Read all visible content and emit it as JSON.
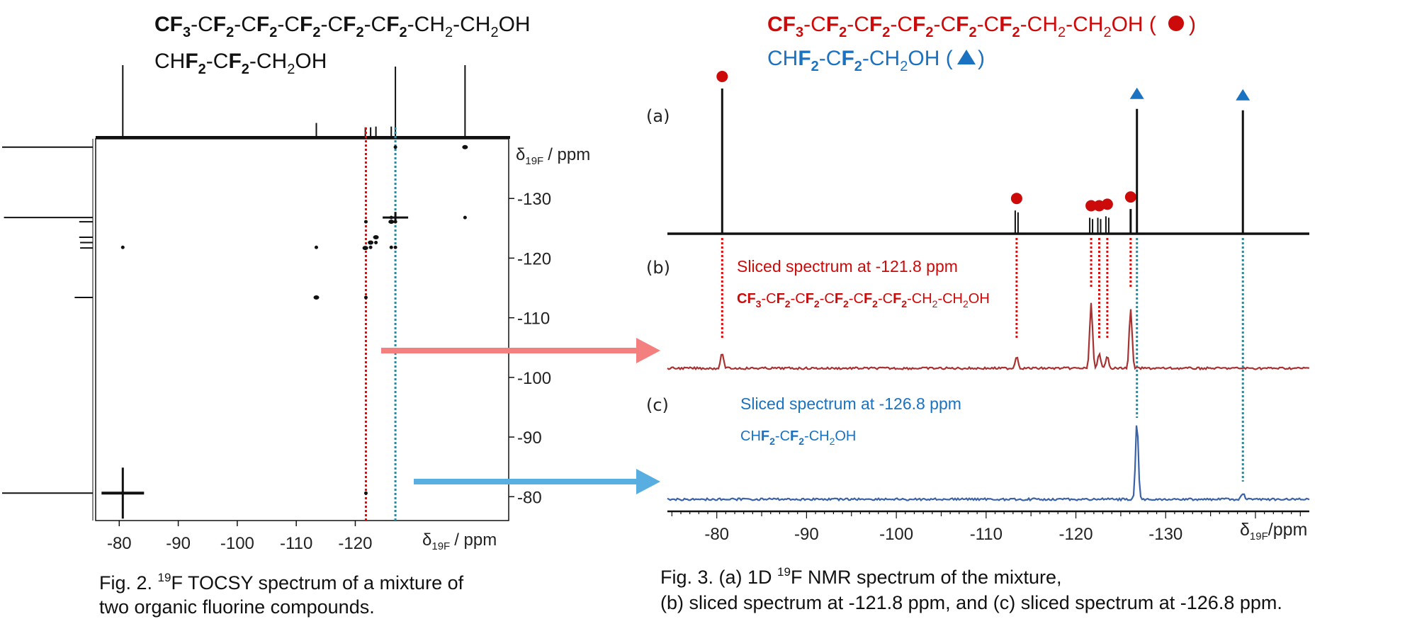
{
  "fig2": {
    "formula_long": {
      "parts": [
        {
          "t": "C",
          "b": true
        },
        {
          "t": "F",
          "b": true
        },
        {
          "t": "3",
          "b": true,
          "sub": true
        },
        {
          "t": "-C",
          "b": false
        },
        {
          "t": "F",
          "b": true
        },
        {
          "t": "2",
          "b": true,
          "sub": true
        },
        {
          "t": "-C",
          "b": false
        },
        {
          "t": "F",
          "b": true
        },
        {
          "t": "2",
          "b": true,
          "sub": true
        },
        {
          "t": "-C",
          "b": false
        },
        {
          "t": "F",
          "b": true
        },
        {
          "t": "2",
          "b": true,
          "sub": true
        },
        {
          "t": "-C",
          "b": false
        },
        {
          "t": "F",
          "b": true
        },
        {
          "t": "2",
          "b": true,
          "sub": true
        },
        {
          "t": "-C",
          "b": false
        },
        {
          "t": "F",
          "b": true
        },
        {
          "t": "2",
          "b": true,
          "sub": true
        },
        {
          "t": "-CH",
          "b": false
        },
        {
          "t": "2",
          "b": false,
          "sub": true
        },
        {
          "t": "-CH",
          "b": false
        },
        {
          "t": "2",
          "b": false,
          "sub": true
        },
        {
          "t": "OH",
          "b": false
        }
      ]
    },
    "formula_short": {
      "parts": [
        {
          "t": "CH",
          "b": false
        },
        {
          "t": "F",
          "b": true
        },
        {
          "t": "2",
          "b": true,
          "sub": true
        },
        {
          "t": "-C",
          "b": false
        },
        {
          "t": "F",
          "b": true
        },
        {
          "t": "2",
          "b": true,
          "sub": true
        },
        {
          "t": "-CH",
          "b": false
        },
        {
          "t": "2",
          "b": false,
          "sub": true
        },
        {
          "t": "OH",
          "b": false
        }
      ]
    },
    "caption_line1": "Fig. 2. ",
    "caption_sup": "19",
    "caption_line1_rest": "F TOCSY spectrum of a mixture of",
    "caption_line2": "two organic fluorine compounds.",
    "x_axis_label": "/ ppm",
    "y_axis_label": "/ ppm",
    "axis_symbol": "δ",
    "axis_sub": "19F"
  },
  "fig3": {
    "formula_red": {
      "parts": [
        {
          "t": "C",
          "b": true
        },
        {
          "t": "F",
          "b": true
        },
        {
          "t": "3",
          "b": true,
          "sub": true
        },
        {
          "t": "-C",
          "b": false
        },
        {
          "t": "F",
          "b": true
        },
        {
          "t": "2",
          "b": true,
          "sub": true
        },
        {
          "t": "-C",
          "b": false
        },
        {
          "t": "F",
          "b": true
        },
        {
          "t": "2",
          "b": true,
          "sub": true
        },
        {
          "t": "-C",
          "b": false
        },
        {
          "t": "F",
          "b": true
        },
        {
          "t": "2",
          "b": true,
          "sub": true
        },
        {
          "t": "-C",
          "b": false
        },
        {
          "t": "F",
          "b": true
        },
        {
          "t": "2",
          "b": true,
          "sub": true
        },
        {
          "t": "-C",
          "b": false
        },
        {
          "t": "F",
          "b": true
        },
        {
          "t": "2",
          "b": true,
          "sub": true
        },
        {
          "t": "-CH",
          "b": false
        },
        {
          "t": "2",
          "b": false,
          "sub": true
        },
        {
          "t": "-CH",
          "b": false
        },
        {
          "t": "2",
          "b": false,
          "sub": true
        },
        {
          "t": "OH (",
          "b": false
        }
      ]
    },
    "formula_blue": {
      "parts": [
        {
          "t": "CH",
          "b": false
        },
        {
          "t": "F",
          "b": true
        },
        {
          "t": "2",
          "b": true,
          "sub": true
        },
        {
          "t": "-C",
          "b": false
        },
        {
          "t": "F",
          "b": true
        },
        {
          "t": "2",
          "b": true,
          "sub": true
        },
        {
          "t": "-CH",
          "b": false
        },
        {
          "t": "2",
          "b": false,
          "sub": true
        },
        {
          "t": "OH (",
          "b": false
        }
      ]
    },
    "panel_a": "(a)",
    "panel_b": "(b)",
    "panel_c": "(c)",
    "slice_b_label": "Sliced spectrum at -121.8 ppm",
    "slice_c_label": "Sliced spectrum at -126.8 ppm",
    "caption_line1": "Fig. 3. (a) 1D ",
    "caption_sup": "19",
    "caption_line1_rest": "F NMR spectrum of the mixture,",
    "caption_line2": "(b) sliced spectrum at -121.8 ppm, and (c) sliced spectrum at -126.8 ppm.",
    "x_axis_label": "/ppm",
    "axis_symbol": "δ",
    "axis_sub": "19F"
  },
  "colors": {
    "red": "#cc0a0a",
    "blue": "#1a72c0",
    "dotted_red": "#d40f0f",
    "dotted_teal": "#2a8a9c",
    "arrow_red": "#f47f7f",
    "arrow_blue": "#58aee0",
    "trace_red": "#a83232",
    "trace_blue": "#3a62a8"
  },
  "chart_data": [
    {
      "type": "heatmap",
      "title": "",
      "subtitle": "",
      "xlabel": "δ19F / ppm",
      "ylabel": "δ19F / ppm",
      "xlim": [
        -76,
        -146
      ],
      "ylim": [
        -76,
        -140
      ],
      "x_ticks": [
        -80,
        -90,
        -100,
        -110,
        -120
      ],
      "y_ticks": [
        -80,
        -90,
        -100,
        -110,
        -120,
        -130
      ],
      "diagonal_peaks": [
        -80.6,
        -113.4,
        -121.7,
        -122.6,
        -123.5,
        -126.1,
        -126.8,
        -138.6
      ],
      "cross_peaks": [
        {
          "x": -80.6,
          "y": -121.8
        },
        {
          "x": -121.8,
          "y": -80.6
        },
        {
          "x": -113.4,
          "y": -121.8
        },
        {
          "x": -121.8,
          "y": -113.4
        },
        {
          "x": -126.8,
          "y": -138.6
        },
        {
          "x": -138.6,
          "y": -126.8
        },
        {
          "x": -122.6,
          "y": -121.8
        },
        {
          "x": -123.5,
          "y": -122.6
        },
        {
          "x": -126.1,
          "y": -121.8
        },
        {
          "x": -121.8,
          "y": -126.1
        },
        {
          "x": -126.8,
          "y": -126.1
        },
        {
          "x": -126.1,
          "y": -126.8
        },
        {
          "x": -126.8,
          "y": -121.8
        }
      ]
    },
    {
      "type": "line",
      "title": "",
      "xlabel": "δ19F/ppm",
      "xlim": [
        -74.5,
        -146
      ],
      "x_ticks": [
        -80,
        -90,
        -100,
        -110,
        -120,
        -130
      ],
      "series": [
        {
          "name": "(a)",
          "peaks": [
            {
              "x": -80.6,
              "h": 1.0,
              "m": "circle"
            },
            {
              "x": -113.4,
              "h": 0.16,
              "m": "circle"
            },
            {
              "x": -121.7,
              "h": 0.11,
              "m": "circle"
            },
            {
              "x": -122.6,
              "h": 0.11,
              "m": "circle"
            },
            {
              "x": -123.5,
              "h": 0.12,
              "m": "circle"
            },
            {
              "x": -126.1,
              "h": 0.17,
              "m": "circle"
            },
            {
              "x": -126.8,
              "h": 0.86,
              "m": "triangle"
            },
            {
              "x": -138.6,
              "h": 0.85,
              "m": "triangle"
            }
          ]
        },
        {
          "name": "(b)",
          "peaks": [
            {
              "x": -80.6,
              "h": 0.2
            },
            {
              "x": -113.4,
              "h": 0.16
            },
            {
              "x": -121.7,
              "h": 0.85
            },
            {
              "x": -122.6,
              "h": 0.18
            },
            {
              "x": -123.5,
              "h": 0.17
            },
            {
              "x": -126.1,
              "h": 0.77
            }
          ]
        },
        {
          "name": "(c)",
          "peaks": [
            {
              "x": -126.8,
              "h": 1.0
            },
            {
              "x": -138.6,
              "h": 0.08
            }
          ]
        }
      ]
    }
  ]
}
